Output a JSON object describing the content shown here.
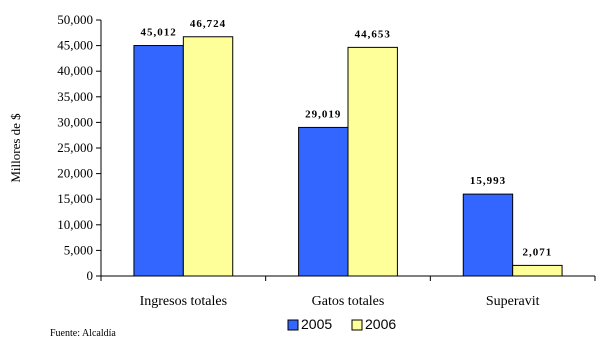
{
  "chart_data": {
    "type": "bar",
    "categories": [
      "Ingresos totales",
      "Gatos totales",
      "Superavit"
    ],
    "series": [
      {
        "name": "2005",
        "values": [
          45012,
          29019,
          15993
        ],
        "color": "#3366FF"
      },
      {
        "name": "2006",
        "values": [
          46724,
          44653,
          2071
        ],
        "color": "#FFFF99"
      }
    ],
    "data_labels": [
      [
        "45,012",
        "29,019",
        "15,993"
      ],
      [
        "46,724",
        "44,653",
        "2,071"
      ]
    ],
    "ylabel": "Millores de $",
    "ylim": [
      0,
      50000
    ],
    "yticks": [
      0,
      5000,
      10000,
      15000,
      20000,
      25000,
      30000,
      35000,
      40000,
      45000,
      50000
    ],
    "ytick_labels": [
      "0",
      "5,000",
      "10,000",
      "15,000",
      "20,000",
      "25,000",
      "30,000",
      "35,000",
      "40,000",
      "45,000",
      "50,000"
    ],
    "legend_position": "bottom",
    "grid": false
  },
  "footer": {
    "source": "Fuente: Alcaldía"
  }
}
